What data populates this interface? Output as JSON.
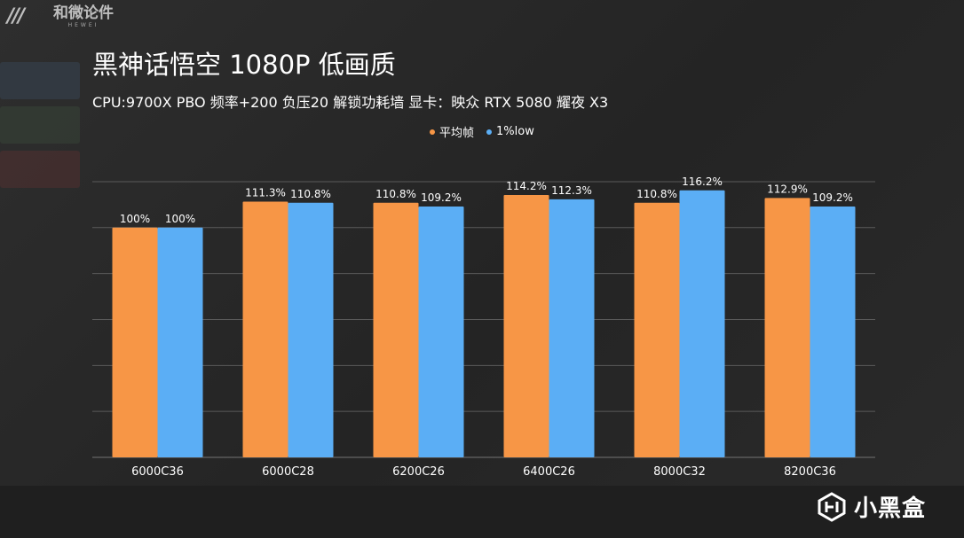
{
  "brand": {
    "name": "和微论件",
    "sub": "HEWEI"
  },
  "header": {
    "title": "黑神话悟空 1080P 低画质",
    "subtitle": "CPU:9700X PBO 频率+200 负压20 解锁功耗墙 显卡：映众 RTX 5080 耀夜 X3"
  },
  "colors": {
    "avg": "#F79646",
    "low": "#5BAEF5",
    "grid": "#5a5a5a",
    "background": "#262626"
  },
  "chart_data": {
    "type": "bar",
    "title": "黑神话悟空 1080P 低画质",
    "categories": [
      "6000C36",
      "6000C28",
      "6200C26",
      "6400C26",
      "8000C32",
      "8200C36"
    ],
    "series": [
      {
        "name": "平均帧",
        "values": [
          100,
          111.3,
          110.8,
          114.2,
          110.8,
          112.9
        ],
        "labels": [
          "100%",
          "111.3%",
          "110.8%",
          "114.2%",
          "110.8%",
          "112.9%"
        ]
      },
      {
        "name": "1%low",
        "values": [
          100,
          110.8,
          109.2,
          112.3,
          116.2,
          109.2
        ],
        "labels": [
          "100%",
          "110.8%",
          "109.2%",
          "112.3%",
          "116.2%",
          "109.2%"
        ]
      }
    ],
    "ylim": [
      0,
      125
    ],
    "gridlines": [
      0,
      20,
      40,
      60,
      80,
      100,
      120
    ],
    "legend_position": "top-center",
    "xlabel": "",
    "ylabel": ""
  },
  "watermark": {
    "text": "小黑盒"
  }
}
